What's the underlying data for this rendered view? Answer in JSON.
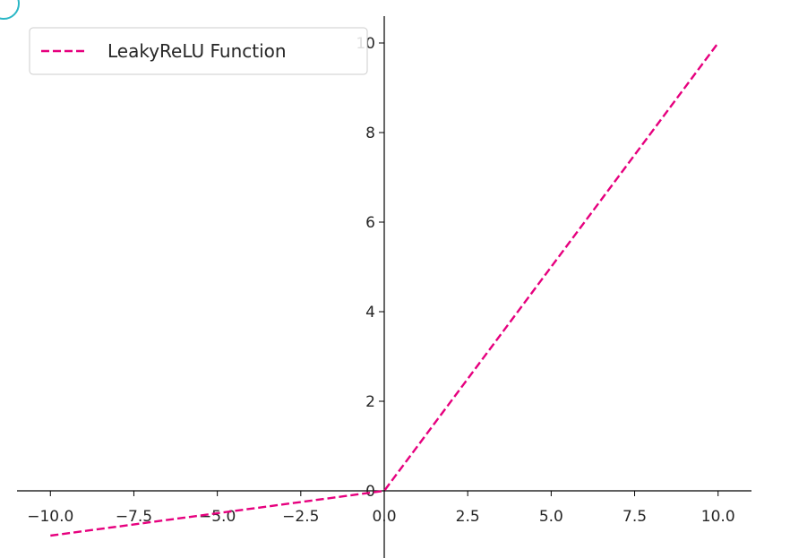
{
  "chart_data": {
    "type": "line",
    "title": "",
    "xlabel": "",
    "ylabel": "",
    "xlim": [
      -11.0,
      11.0
    ],
    "ylim": [
      -1.5,
      10.6
    ],
    "x_ticks": [
      -10.0,
      -7.5,
      -5.0,
      -2.5,
      0.0,
      2.5,
      5.0,
      7.5,
      10.0
    ],
    "x_tick_labels": [
      "−10.0",
      "−7.5",
      "−5.0",
      "−2.5",
      "0.0",
      "2.5",
      "5.0",
      "7.5",
      "10.0"
    ],
    "y_ticks": [
      0,
      2,
      4,
      6,
      8,
      10
    ],
    "y_tick_labels": [
      "0",
      "2",
      "4",
      "6",
      "8",
      "10"
    ],
    "spines": "centered at origin",
    "grid": false,
    "legend": {
      "placement": "upper-left",
      "entries": [
        "LeakyReLU Function"
      ]
    },
    "series": [
      {
        "name": "LeakyReLU Function",
        "color": "#e6007e",
        "style": "dashed",
        "x": [
          -10.0,
          0.0,
          10.0
        ],
        "y": [
          -1.0,
          0.0,
          10.0
        ]
      }
    ]
  }
}
